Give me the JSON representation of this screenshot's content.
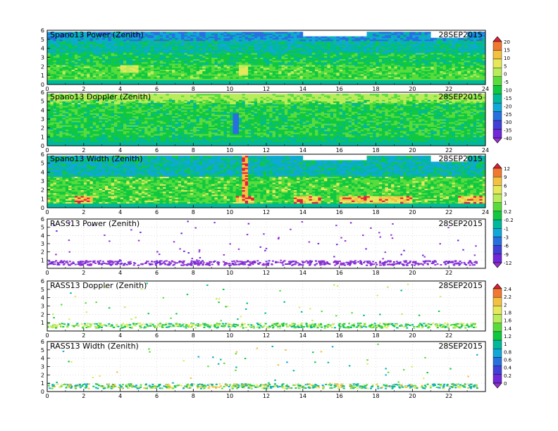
{
  "chart_data": [
    {
      "type": "heatmap",
      "title": "Spano13 Power (Zenith)",
      "date": "28SEP2015",
      "x_ticks": [
        0,
        2,
        4,
        6,
        8,
        10,
        12,
        14,
        16,
        18,
        20,
        22,
        24
      ],
      "y_ticks": [
        0,
        1,
        2,
        3,
        4,
        5,
        6
      ],
      "xlim": [
        0,
        24
      ],
      "ylim": [
        0,
        6
      ],
      "field": "power",
      "colorbar_group": 1
    },
    {
      "type": "heatmap",
      "title": "Spano13 Doppler (Zenith)",
      "date": "28SEP2015",
      "x_ticks": [
        0,
        2,
        4,
        6,
        8,
        10,
        12,
        14,
        16,
        18,
        20,
        22,
        24
      ],
      "y_ticks": [
        0,
        1,
        2,
        3,
        4,
        5,
        6
      ],
      "xlim": [
        0,
        24
      ],
      "ylim": [
        0,
        6
      ],
      "field": "doppler",
      "colorbar_group": 1
    },
    {
      "type": "heatmap",
      "title": "Spano13 Width (Zenith)",
      "date": "28SEP2015",
      "x_ticks": [
        0,
        2,
        4,
        6,
        8,
        10,
        12,
        14,
        16,
        18,
        20,
        22,
        24
      ],
      "y_ticks": [
        0,
        1,
        2,
        3,
        4,
        5,
        6
      ],
      "xlim": [
        0,
        24
      ],
      "ylim": [
        0,
        6
      ],
      "field": "width",
      "colorbar_group": 2
    },
    {
      "type": "scatter",
      "title": "RASS13 Power (Zenith)",
      "date": "28SEP2015",
      "x_ticks": [
        0,
        2,
        4,
        6,
        8,
        10,
        12,
        14,
        16,
        18,
        20,
        22
      ],
      "y_ticks": [
        1,
        2,
        3,
        4,
        5,
        6
      ],
      "xlim": [
        0,
        24
      ],
      "ylim": [
        0,
        6
      ],
      "field": "rass_power",
      "colorbar_group": 2
    },
    {
      "type": "scatter",
      "title": "RASS13 Doppler (Zenith)",
      "date": "28SEP2015",
      "x_ticks": [
        0,
        2,
        4,
        6,
        8,
        10,
        12,
        14,
        16,
        18,
        20,
        22
      ],
      "y_ticks": [
        1,
        2,
        3,
        4,
        5,
        6
      ],
      "xlim": [
        0,
        24
      ],
      "ylim": [
        0,
        6
      ],
      "field": "rass_doppler",
      "colorbar_group": 3
    },
    {
      "type": "scatter",
      "title": "RASS13 Width (Zenith)",
      "date": "28SEP2015",
      "x_ticks": [
        0,
        2,
        4,
        6,
        8,
        10,
        12,
        14,
        16,
        18,
        20,
        22
      ],
      "y_ticks": [
        0,
        1,
        2,
        3,
        4,
        5,
        6
      ],
      "xlim": [
        0,
        24
      ],
      "ylim": [
        0,
        6
      ],
      "field": "rass_width",
      "colorbar_group": 3
    }
  ],
  "colorbars": [
    {
      "labels": [
        "20",
        "15",
        "10",
        "5",
        "0",
        "-5",
        "-10",
        "-15",
        "-20",
        "-25",
        "-30",
        "-35",
        "-40"
      ],
      "colors": [
        "#e0203c",
        "#f07830",
        "#f4c040",
        "#e6e85a",
        "#b8ec5a",
        "#58dc3c",
        "#10c840",
        "#00b89a",
        "#10a8d8",
        "#2870e0",
        "#4040d8",
        "#7028d8",
        "#9830d0"
      ]
    },
    {
      "labels": [
        "12",
        "9",
        "6",
        "3",
        "1",
        "0.2",
        "-0.2",
        "-1",
        "-3",
        "-6",
        "-9",
        "-12"
      ],
      "colors": [
        "#e0203c",
        "#f07830",
        "#f4c040",
        "#e6e85a",
        "#b8ec5a",
        "#58dc3c",
        "#10c840",
        "#00b89a",
        "#10a8d8",
        "#2870e0",
        "#4040d8",
        "#7028d8",
        "#9830d0"
      ]
    },
    {
      "labels": [
        "2.4",
        "2.2",
        "2",
        "1.8",
        "1.6",
        "1.4",
        "1.2",
        "1",
        "0.8",
        "0.6",
        "0.4",
        "0.2",
        "0"
      ],
      "colors": [
        "#e0203c",
        "#f07830",
        "#f4c040",
        "#e6e85a",
        "#b8ec5a",
        "#58dc3c",
        "#10c840",
        "#00b89a",
        "#10a8d8",
        "#2870e0",
        "#4040d8",
        "#7028d8",
        "#9830d0"
      ]
    }
  ]
}
